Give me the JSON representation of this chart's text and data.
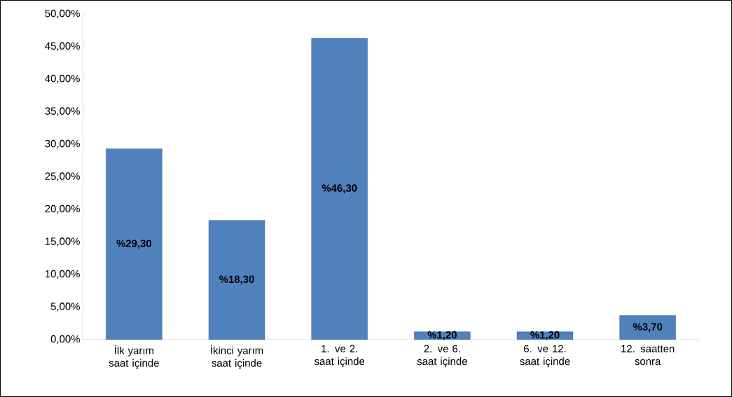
{
  "chart_data": {
    "type": "bar",
    "categories": [
      "İlk yarım saat içinde",
      "İkinci yarım saat içinde",
      "1. ve 2. saat içinde",
      "2. ve 6. saat içinde",
      "6. ve 12. saat içinde",
      "12. saatten sonra"
    ],
    "values": [
      29.3,
      18.3,
      46.3,
      1.2,
      1.2,
      3.7
    ],
    "value_labels": [
      "%29,30",
      "%18,30",
      "%46,30",
      "%1,20",
      "%1,20",
      "%3,70"
    ],
    "color": "#4f81bd",
    "ylim": [
      0,
      50
    ],
    "yticks": [
      {
        "value": 0,
        "label": "0,00%"
      },
      {
        "value": 5,
        "label": "5,00%"
      },
      {
        "value": 10,
        "label": "10,00%"
      },
      {
        "value": 15,
        "label": "15,00%"
      },
      {
        "value": 20,
        "label": "20,00%"
      },
      {
        "value": 25,
        "label": "25,00%"
      },
      {
        "value": 30,
        "label": "30,00%"
      },
      {
        "value": 35,
        "label": "35,00%"
      },
      {
        "value": 40,
        "label": "40,00%"
      },
      {
        "value": 45,
        "label": "45,00%"
      },
      {
        "value": 50,
        "label": "50,00%"
      }
    ]
  }
}
